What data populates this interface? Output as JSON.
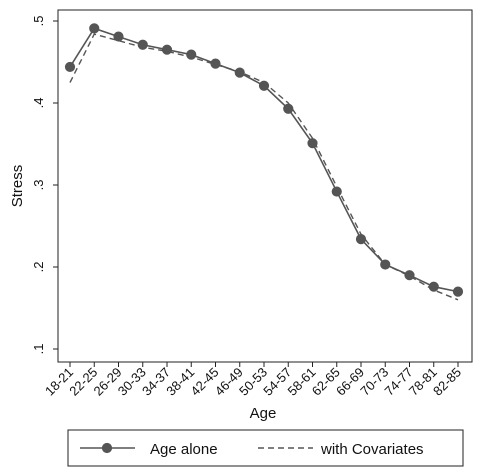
{
  "chart_data": {
    "type": "line",
    "categories": [
      "18-21",
      "22-25",
      "26-29",
      "30-33",
      "34-37",
      "38-41",
      "42-45",
      "46-49",
      "50-53",
      "54-57",
      "58-61",
      "62-65",
      "66-69",
      "70-73",
      "74-77",
      "78-81",
      "82-85"
    ],
    "series": [
      {
        "name": "Age alone",
        "values": [
          0.444,
          0.491,
          0.481,
          0.471,
          0.465,
          0.459,
          0.448,
          0.437,
          0.421,
          0.393,
          0.351,
          0.292,
          0.234,
          0.203,
          0.19,
          0.176,
          0.17
        ],
        "style": "solid-with-markers",
        "color": "#555555"
      },
      {
        "name": "with Covariates",
        "values": [
          0.425,
          0.484,
          0.476,
          0.468,
          0.463,
          0.456,
          0.447,
          0.438,
          0.425,
          0.4,
          0.357,
          0.298,
          0.24,
          0.203,
          0.189,
          0.172,
          0.16
        ],
        "style": "dashed",
        "color": "#555555"
      }
    ],
    "xlabel": "Age",
    "ylabel": "Stress",
    "yticks": [
      0.1,
      0.2,
      0.3,
      0.4,
      0.5
    ],
    "ytick_labels": [
      ".1",
      ".2",
      ".3",
      ".4",
      ".5"
    ],
    "ylim": [
      0.1,
      0.5
    ],
    "grid": false,
    "legend_position": "bottom"
  }
}
